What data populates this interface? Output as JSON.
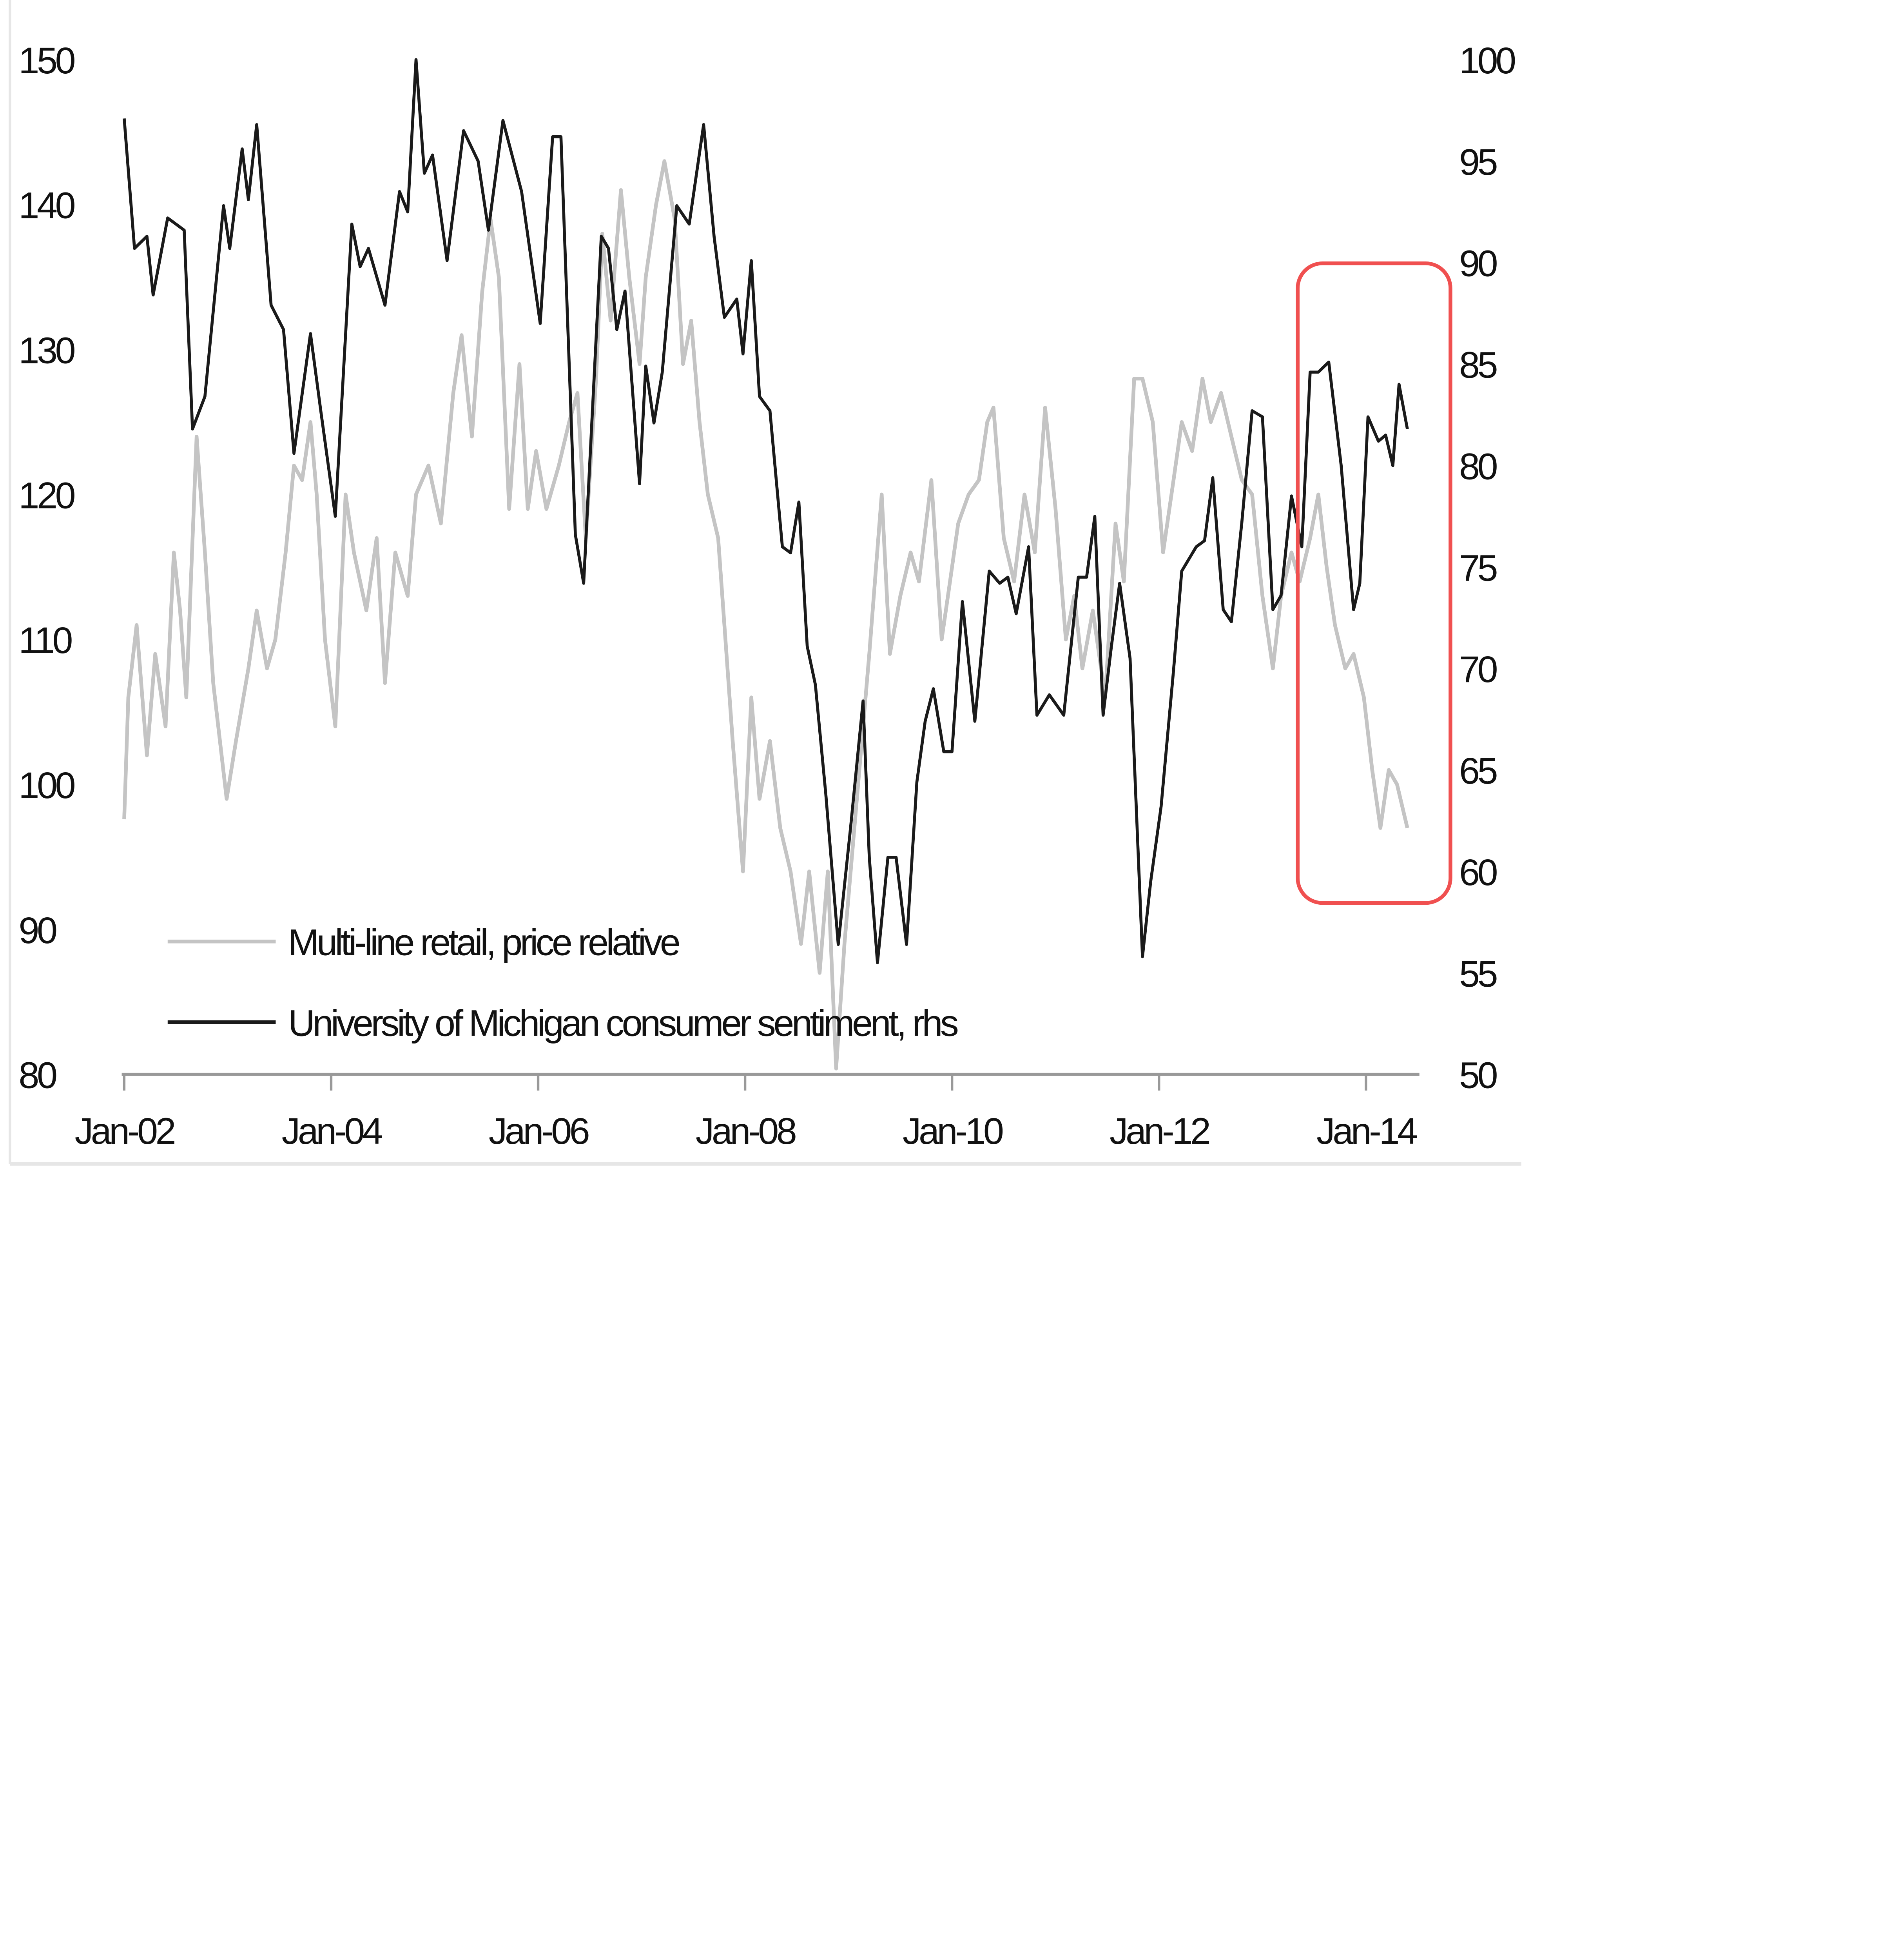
{
  "chart_data": {
    "type": "line",
    "title": "",
    "xlabel": "",
    "ylabel_left": "",
    "ylabel_right": "",
    "x_ticks": [
      {
        "year": 2002,
        "label": "Jan-02"
      },
      {
        "year": 2004,
        "label": "Jan-04"
      },
      {
        "year": 2006,
        "label": "Jan-06"
      },
      {
        "year": 2008,
        "label": "Jan-08"
      },
      {
        "year": 2010,
        "label": "Jan-10"
      },
      {
        "year": 2012,
        "label": "Jan-12"
      },
      {
        "year": 2014,
        "label": "Jan-14"
      }
    ],
    "xlim": [
      2002,
      2014.45
    ],
    "ylim_left": [
      80,
      150
    ],
    "ylim_right": [
      50,
      100
    ],
    "left_ticks": [
      "150",
      "140",
      "130",
      "120",
      "110",
      "100",
      "90",
      "80"
    ],
    "right_ticks": [
      "100",
      "95",
      "90",
      "85",
      "80",
      "75",
      "70",
      "65",
      "60",
      "55",
      "50"
    ],
    "grid": false,
    "legend_position": "bottom-left",
    "highlight": {
      "shape": "rounded-rectangle",
      "color": "#f05050",
      "x_range": [
        2013.4,
        2014.82
      ],
      "y_range_right": [
        58.6,
        90.2
      ]
    },
    "series": [
      {
        "name": "Multi-line retail, price relative",
        "axis": "left",
        "color": "#c4c4c4",
        "points": [
          [
            2002.0,
            97.6
          ],
          [
            2002.04,
            106
          ],
          [
            2002.12,
            111
          ],
          [
            2002.22,
            102
          ],
          [
            2002.3,
            109
          ],
          [
            2002.4,
            104
          ],
          [
            2002.48,
            116
          ],
          [
            2002.54,
            112
          ],
          [
            2002.6,
            106
          ],
          [
            2002.7,
            124
          ],
          [
            2002.78,
            116
          ],
          [
            2002.86,
            107
          ],
          [
            2002.99,
            99
          ],
          [
            2003.08,
            103
          ],
          [
            2003.2,
            108
          ],
          [
            2003.28,
            112
          ],
          [
            2003.38,
            108
          ],
          [
            2003.46,
            110
          ],
          [
            2003.56,
            116
          ],
          [
            2003.64,
            122
          ],
          [
            2003.72,
            121
          ],
          [
            2003.8,
            125
          ],
          [
            2003.86,
            120
          ],
          [
            2003.94,
            110
          ],
          [
            2004.04,
            104
          ],
          [
            2004.14,
            120
          ],
          [
            2004.22,
            116
          ],
          [
            2004.34,
            112
          ],
          [
            2004.44,
            117
          ],
          [
            2004.52,
            107
          ],
          [
            2004.62,
            116
          ],
          [
            2004.74,
            113
          ],
          [
            2004.82,
            120
          ],
          [
            2004.94,
            122
          ],
          [
            2005.06,
            118
          ],
          [
            2005.18,
            127
          ],
          [
            2005.26,
            131
          ],
          [
            2005.36,
            124
          ],
          [
            2005.46,
            134
          ],
          [
            2005.54,
            139
          ],
          [
            2005.62,
            135
          ],
          [
            2005.72,
            119
          ],
          [
            2005.82,
            129
          ],
          [
            2005.9,
            119
          ],
          [
            2005.98,
            123
          ],
          [
            2006.08,
            119
          ],
          [
            2006.2,
            122
          ],
          [
            2006.3,
            125
          ],
          [
            2006.38,
            127
          ],
          [
            2006.46,
            117
          ],
          [
            2006.56,
            128
          ],
          [
            2006.62,
            138
          ],
          [
            2006.7,
            132
          ],
          [
            2006.8,
            141
          ],
          [
            2006.88,
            135
          ],
          [
            2006.98,
            129
          ],
          [
            2007.04,
            135
          ],
          [
            2007.14,
            140
          ],
          [
            2007.22,
            143
          ],
          [
            2007.32,
            139
          ],
          [
            2007.4,
            129
          ],
          [
            2007.48,
            132
          ],
          [
            2007.56,
            125
          ],
          [
            2007.64,
            120
          ],
          [
            2007.74,
            117
          ],
          [
            2007.82,
            109
          ],
          [
            2007.88,
            103
          ],
          [
            2007.98,
            94
          ],
          [
            2008.06,
            106
          ],
          [
            2008.14,
            99
          ],
          [
            2008.24,
            103
          ],
          [
            2008.34,
            97
          ],
          [
            2008.44,
            94
          ],
          [
            2008.54,
            89
          ],
          [
            2008.62,
            94
          ],
          [
            2008.72,
            87
          ],
          [
            2008.8,
            94
          ],
          [
            2008.88,
            80.4
          ],
          [
            2008.96,
            89
          ],
          [
            2009.08,
            99
          ],
          [
            2009.2,
            109
          ],
          [
            2009.32,
            120
          ],
          [
            2009.4,
            109
          ],
          [
            2009.5,
            113
          ],
          [
            2009.6,
            116
          ],
          [
            2009.68,
            114
          ],
          [
            2009.8,
            121
          ],
          [
            2009.9,
            110
          ],
          [
            2009.98,
            114
          ],
          [
            2010.06,
            118
          ],
          [
            2010.16,
            120
          ],
          [
            2010.26,
            121
          ],
          [
            2010.34,
            125
          ],
          [
            2010.4,
            126
          ],
          [
            2010.5,
            117
          ],
          [
            2010.6,
            114
          ],
          [
            2010.7,
            120
          ],
          [
            2010.8,
            116
          ],
          [
            2010.9,
            126
          ],
          [
            2011.0,
            119
          ],
          [
            2011.1,
            110
          ],
          [
            2011.18,
            113
          ],
          [
            2011.26,
            108
          ],
          [
            2011.36,
            112
          ],
          [
            2011.48,
            106
          ],
          [
            2011.58,
            118
          ],
          [
            2011.66,
            114
          ],
          [
            2011.76,
            128
          ],
          [
            2011.84,
            128
          ],
          [
            2011.94,
            125
          ],
          [
            2012.04,
            116
          ],
          [
            2012.14,
            121
          ],
          [
            2012.22,
            125
          ],
          [
            2012.32,
            123
          ],
          [
            2012.42,
            128
          ],
          [
            2012.5,
            125
          ],
          [
            2012.6,
            127
          ],
          [
            2012.7,
            124
          ],
          [
            2012.8,
            121
          ],
          [
            2012.9,
            120
          ],
          [
            2013.0,
            113
          ],
          [
            2013.1,
            108
          ],
          [
            2013.18,
            113
          ],
          [
            2013.28,
            116
          ],
          [
            2013.36,
            114
          ],
          [
            2013.46,
            117
          ],
          [
            2013.54,
            120
          ],
          [
            2013.62,
            115
          ],
          [
            2013.7,
            111
          ],
          [
            2013.8,
            108
          ],
          [
            2013.88,
            109
          ],
          [
            2013.98,
            106
          ],
          [
            2014.06,
            101
          ],
          [
            2014.14,
            97
          ],
          [
            2014.22,
            101
          ],
          [
            2014.3,
            100
          ],
          [
            2014.4,
            97
          ]
        ]
      },
      {
        "name": "University of Michigan consumer sentiment, rhs",
        "axis": "right",
        "color": "#1a1a1a",
        "points": [
          [
            2002.0,
            97.1
          ],
          [
            2002.1,
            90.7
          ],
          [
            2002.22,
            91.3
          ],
          [
            2002.28,
            88.4
          ],
          [
            2002.42,
            92.2
          ],
          [
            2002.58,
            91.6
          ],
          [
            2002.66,
            81.8
          ],
          [
            2002.78,
            83.4
          ],
          [
            2002.96,
            92.8
          ],
          [
            2003.02,
            90.7
          ],
          [
            2003.14,
            95.6
          ],
          [
            2003.2,
            93.1
          ],
          [
            2003.28,
            96.8
          ],
          [
            2003.42,
            87.9
          ],
          [
            2003.54,
            86.7
          ],
          [
            2003.64,
            80.6
          ],
          [
            2003.8,
            86.5
          ],
          [
            2003.9,
            82.7
          ],
          [
            2004.04,
            77.5
          ],
          [
            2004.2,
            91.9
          ],
          [
            2004.28,
            89.8
          ],
          [
            2004.36,
            90.7
          ],
          [
            2004.52,
            87.9
          ],
          [
            2004.66,
            93.5
          ],
          [
            2004.74,
            92.5
          ],
          [
            2004.82,
            100
          ],
          [
            2004.9,
            94.4
          ],
          [
            2004.98,
            95.3
          ],
          [
            2005.12,
            90.1
          ],
          [
            2005.28,
            96.5
          ],
          [
            2005.42,
            95.0
          ],
          [
            2005.52,
            91.6
          ],
          [
            2005.66,
            97.0
          ],
          [
            2005.84,
            93.5
          ],
          [
            2006.02,
            87.0
          ],
          [
            2006.14,
            96.2
          ],
          [
            2006.22,
            96.2
          ],
          [
            2006.36,
            76.6
          ],
          [
            2006.44,
            74.2
          ],
          [
            2006.61,
            91.3
          ],
          [
            2006.68,
            90.7
          ],
          [
            2006.76,
            86.7
          ],
          [
            2006.84,
            88.6
          ],
          [
            2006.98,
            79.1
          ],
          [
            2007.04,
            84.9
          ],
          [
            2007.12,
            82.1
          ],
          [
            2007.2,
            84.6
          ],
          [
            2007.34,
            92.8
          ],
          [
            2007.46,
            91.9
          ],
          [
            2007.6,
            96.8
          ],
          [
            2007.7,
            91.3
          ],
          [
            2007.8,
            87.3
          ],
          [
            2007.92,
            88.2
          ],
          [
            2007.98,
            85.5
          ],
          [
            2008.06,
            90.1
          ],
          [
            2008.14,
            83.4
          ],
          [
            2008.24,
            82.7
          ],
          [
            2008.36,
            76.0
          ],
          [
            2008.44,
            75.7
          ],
          [
            2008.52,
            78.2
          ],
          [
            2008.6,
            71.1
          ],
          [
            2008.68,
            69.2
          ],
          [
            2008.78,
            63.8
          ],
          [
            2008.9,
            56.4
          ],
          [
            2009.02,
            62.2
          ],
          [
            2009.14,
            68.4
          ],
          [
            2009.2,
            60.7
          ],
          [
            2009.28,
            55.5
          ],
          [
            2009.38,
            60.7
          ],
          [
            2009.46,
            60.7
          ],
          [
            2009.56,
            56.4
          ],
          [
            2009.66,
            64.4
          ],
          [
            2009.74,
            67.4
          ],
          [
            2009.82,
            69.0
          ],
          [
            2009.92,
            65.9
          ],
          [
            2010.0,
            65.9
          ],
          [
            2010.1,
            73.3
          ],
          [
            2010.22,
            67.4
          ],
          [
            2010.36,
            74.8
          ],
          [
            2010.46,
            74.2
          ],
          [
            2010.54,
            74.5
          ],
          [
            2010.62,
            72.7
          ],
          [
            2010.74,
            76.0
          ],
          [
            2010.82,
            67.7
          ],
          [
            2010.94,
            68.7
          ],
          [
            2011.08,
            67.7
          ],
          [
            2011.22,
            74.5
          ],
          [
            2011.3,
            74.5
          ],
          [
            2011.38,
            77.5
          ],
          [
            2011.46,
            67.7
          ],
          [
            2011.54,
            71.1
          ],
          [
            2011.62,
            74.2
          ],
          [
            2011.72,
            70.5
          ],
          [
            2011.84,
            55.8
          ],
          [
            2011.92,
            59.5
          ],
          [
            2012.02,
            63.2
          ],
          [
            2012.14,
            69.9
          ],
          [
            2012.22,
            74.8
          ],
          [
            2012.36,
            76.0
          ],
          [
            2012.44,
            76.3
          ],
          [
            2012.52,
            79.4
          ],
          [
            2012.62,
            72.9
          ],
          [
            2012.7,
            72.3
          ],
          [
            2012.8,
            77.2
          ],
          [
            2012.9,
            82.7
          ],
          [
            2013.0,
            82.4
          ],
          [
            2013.1,
            72.9
          ],
          [
            2013.18,
            73.6
          ],
          [
            2013.28,
            78.5
          ],
          [
            2013.38,
            76.0
          ],
          [
            2013.46,
            84.6
          ],
          [
            2013.54,
            84.6
          ],
          [
            2013.64,
            85.1
          ],
          [
            2013.76,
            80.0
          ],
          [
            2013.88,
            72.9
          ],
          [
            2013.94,
            74.2
          ],
          [
            2014.02,
            82.4
          ],
          [
            2014.12,
            81.2
          ],
          [
            2014.19,
            81.5
          ],
          [
            2014.26,
            80.0
          ],
          [
            2014.32,
            84.0
          ],
          [
            2014.4,
            81.8
          ]
        ]
      }
    ]
  }
}
